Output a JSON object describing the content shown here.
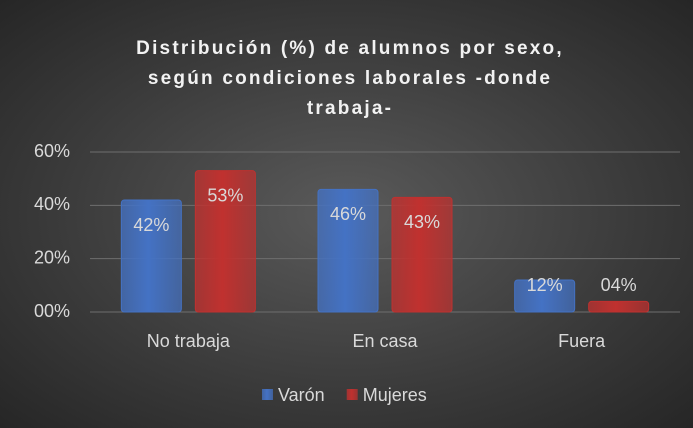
{
  "chart_data": {
    "type": "bar",
    "title": "Distribución (%) de alumnos por sexo, según condiciones laborales -donde trabaja-",
    "categories": [
      "No trabaja",
      "En casa",
      "Fuera"
    ],
    "series": [
      {
        "name": "Varón",
        "color": "#4472c4",
        "values": [
          42,
          46,
          12
        ],
        "value_labels": [
          "42%",
          "46%",
          "12%"
        ]
      },
      {
        "name": "Mujeres",
        "color": "#c0312f",
        "values": [
          53,
          43,
          4
        ],
        "value_labels": [
          "53%",
          "43%",
          "04%"
        ]
      }
    ],
    "ylim": [
      0,
      60
    ],
    "yticks": [
      {
        "value": 0,
        "label": "00%"
      },
      {
        "value": 20,
        "label": "20%"
      },
      {
        "value": 40,
        "label": "40%"
      },
      {
        "value": 60,
        "label": "60%"
      }
    ],
    "grid": true,
    "legend": "bottom"
  }
}
